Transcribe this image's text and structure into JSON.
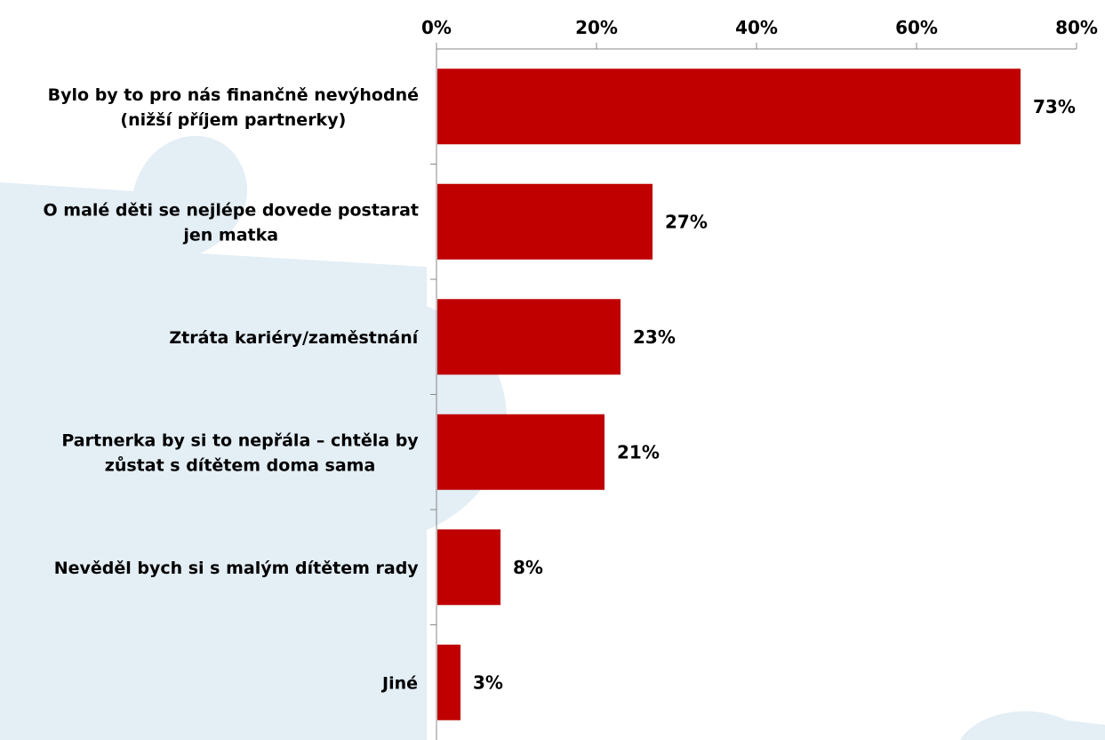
{
  "chart_data": {
    "type": "bar",
    "orientation": "horizontal",
    "title": "",
    "xlabel": "",
    "ylabel": "",
    "xlim": [
      0,
      80
    ],
    "ticks": [
      0,
      20,
      40,
      60,
      80
    ],
    "tick_labels": [
      "0%",
      "20%",
      "40%",
      "60%",
      "80%"
    ],
    "axis_position": "top",
    "grid": false,
    "categories": [
      [
        "Bylo by to pro nás finančně nevýhodné",
        "(nižší příjem partnerky)"
      ],
      [
        "O malé děti se nejlépe dovede postarat",
        "jen matka"
      ],
      [
        "Ztráta kariéry/zaměstnání"
      ],
      [
        "Partnerka by si to nepřála – chtěla by",
        "zůstat s dítětem doma sama"
      ],
      [
        "Nevěděl bych si s malým dítětem rady"
      ],
      [
        "Jiné"
      ]
    ],
    "values": [
      73,
      27,
      23,
      21,
      8,
      3
    ],
    "value_labels": [
      "73%",
      "27%",
      "23%",
      "21%",
      "8%",
      "3%"
    ],
    "bar_color": "#c00000",
    "background_shape_color": "#e3eef5"
  }
}
